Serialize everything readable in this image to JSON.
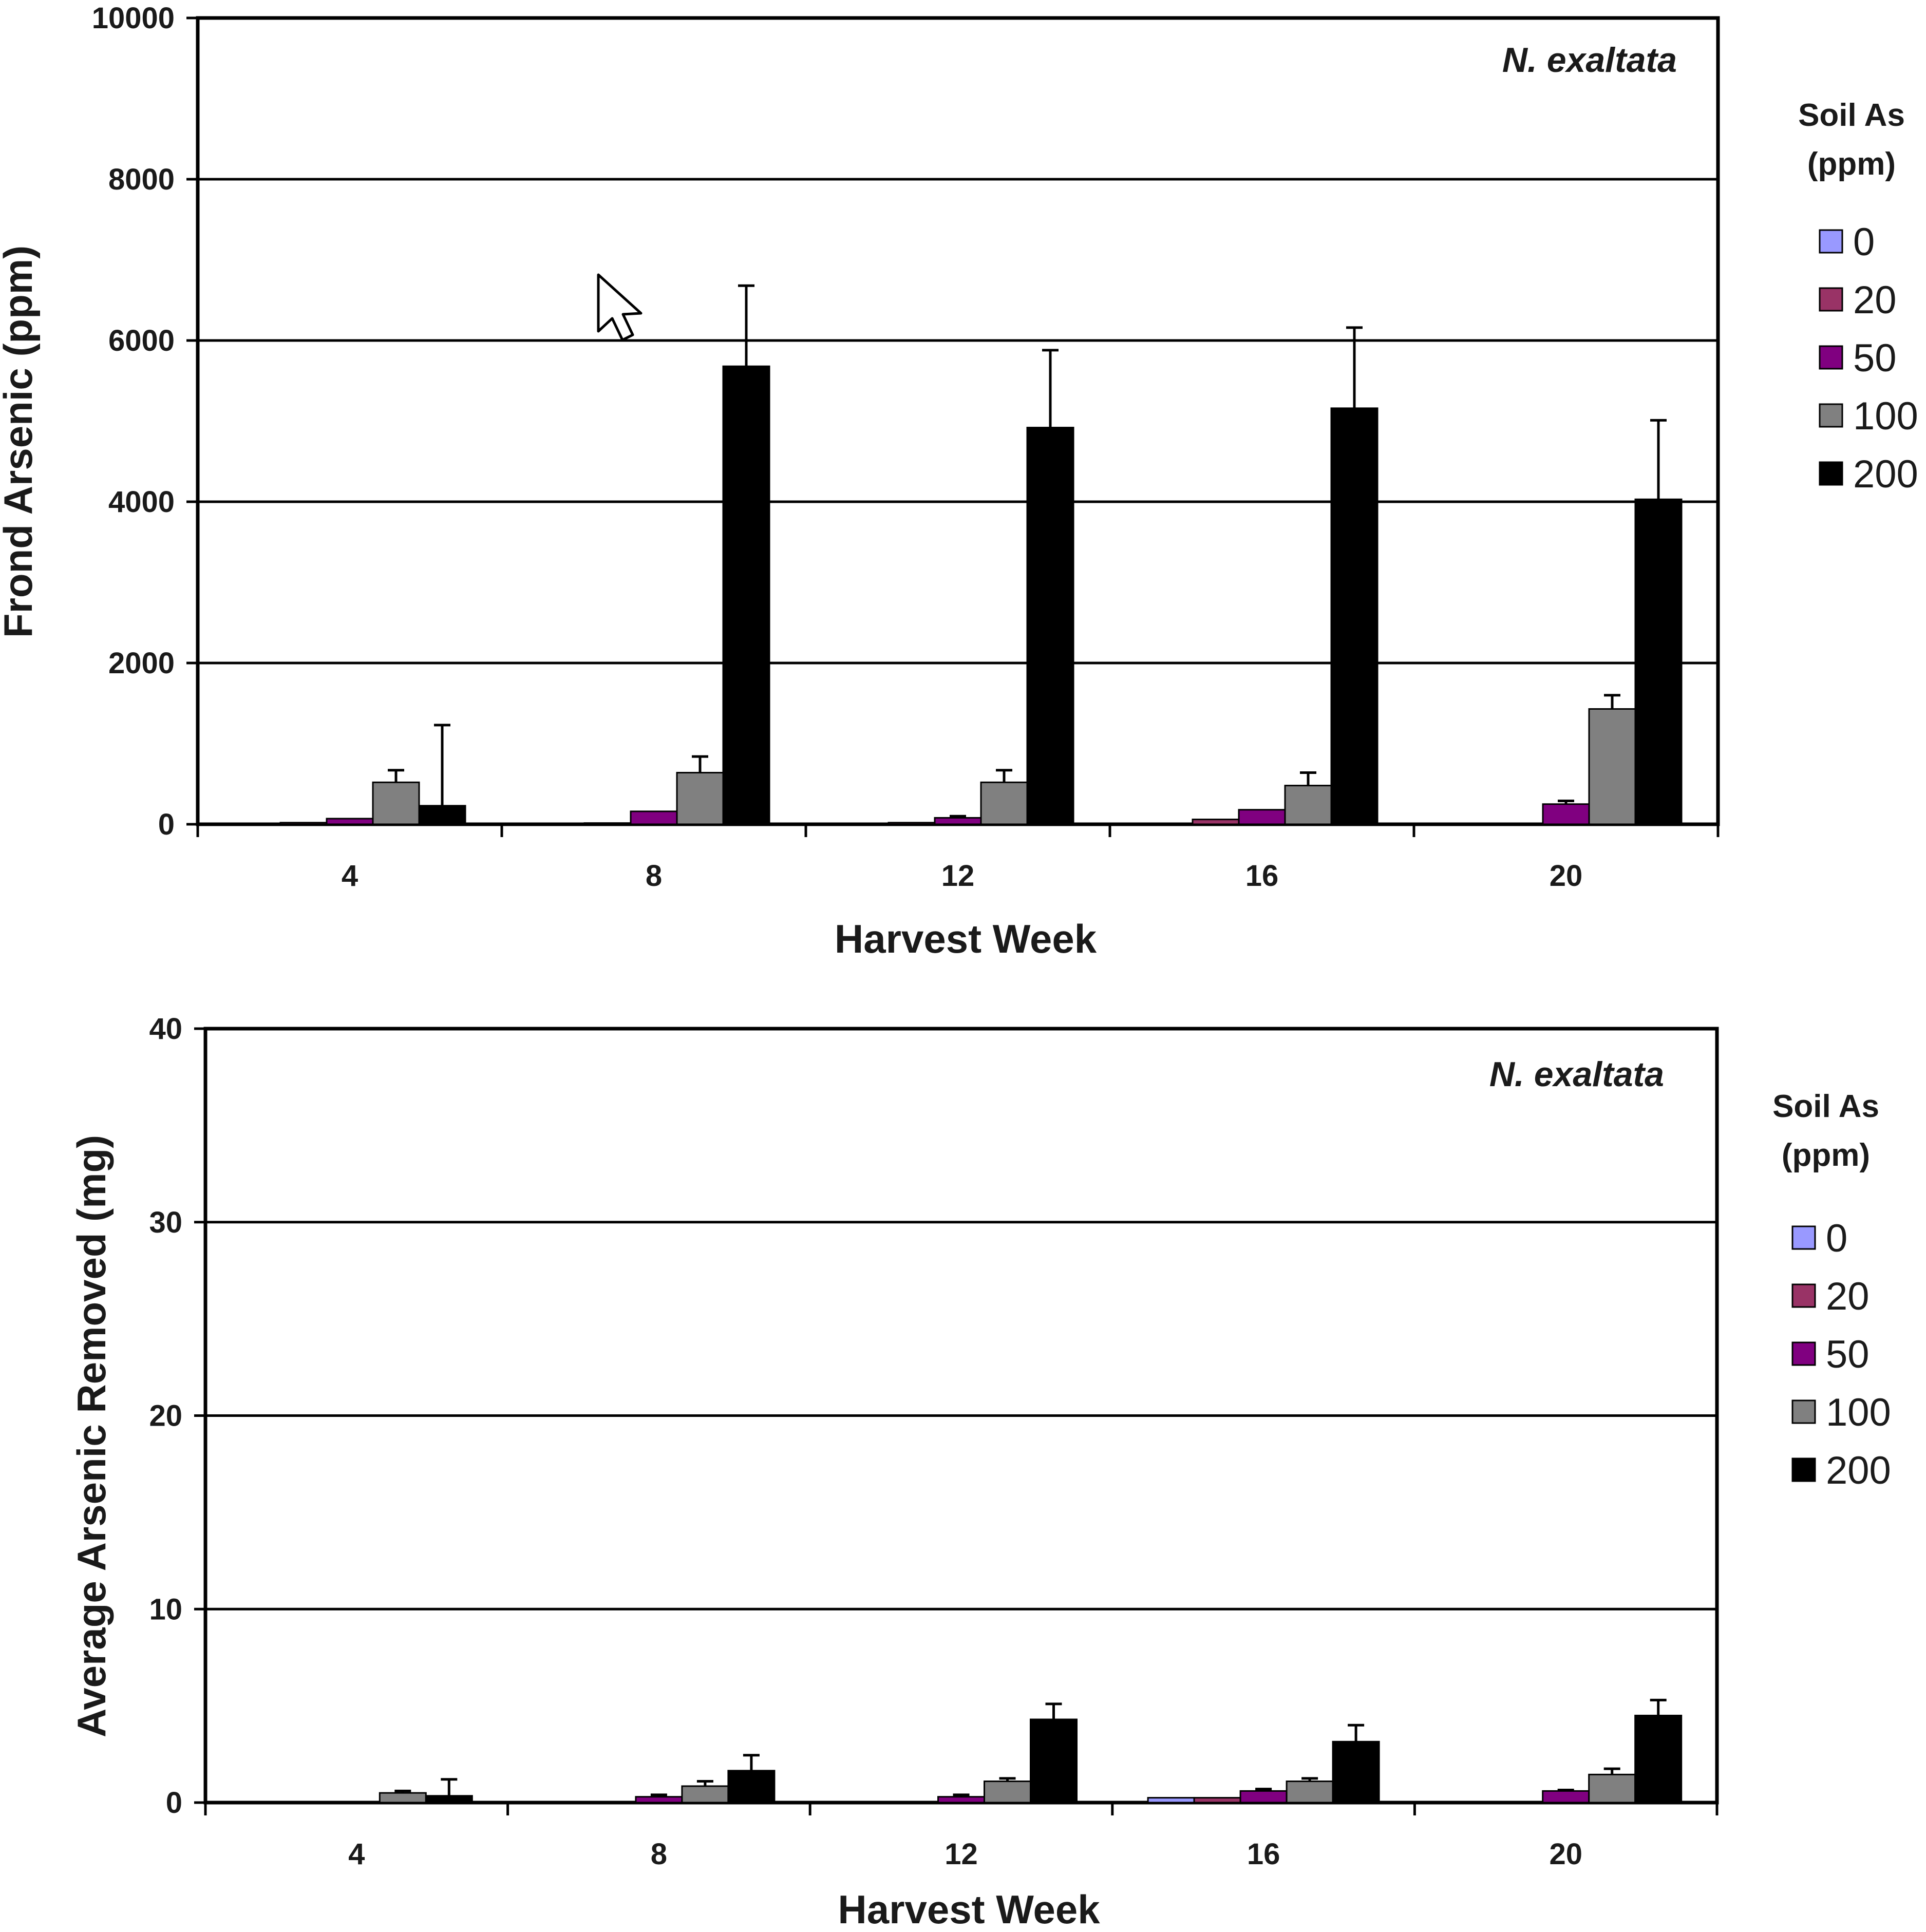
{
  "chart_data": [
    {
      "type": "bar",
      "title": "N. exaltata",
      "xlabel": "Harvest Week",
      "ylabel": "Frond Arsenic (ppm)",
      "ylim": [
        0,
        10000
      ],
      "yticks": [
        "0",
        "2000",
        "4000",
        "6000",
        "8000",
        "10000"
      ],
      "grid": true,
      "legend_title": [
        "Soil As",
        "(ppm)"
      ],
      "legend_placement": "right",
      "categories": [
        "4",
        "8",
        "12",
        "16",
        "20"
      ],
      "series": [
        {
          "name": "0",
          "color": "#9999ff",
          "values": [
            0,
            0,
            0,
            0,
            0
          ],
          "errors": [
            0,
            0,
            0,
            0,
            0
          ]
        },
        {
          "name": "20",
          "color": "#993366",
          "values": [
            20,
            15,
            20,
            60,
            10
          ],
          "errors": [
            0,
            0,
            0,
            0,
            0
          ]
        },
        {
          "name": "50",
          "color": "#800080",
          "values": [
            70,
            160,
            80,
            180,
            250
          ],
          "errors": [
            0,
            0,
            20,
            0,
            40
          ]
        },
        {
          "name": "100",
          "color": "#808080",
          "values": [
            520,
            640,
            520,
            480,
            1430
          ],
          "errors": [
            150,
            200,
            150,
            160,
            170
          ]
        },
        {
          "name": "200",
          "color": "#000000",
          "values": [
            230,
            5680,
            4920,
            5160,
            4030
          ],
          "errors": [
            1000,
            1000,
            960,
            1000,
            980
          ]
        }
      ]
    },
    {
      "type": "bar",
      "title": "N. exaltata",
      "xlabel": "Harvest Week",
      "ylabel": "Average Arsenic Removed (mg)",
      "ylim": [
        0,
        40
      ],
      "yticks": [
        "0",
        "10",
        "20",
        "30",
        "40"
      ],
      "grid": true,
      "legend_title": [
        "Soil As",
        "(ppm)"
      ],
      "legend_placement": "right",
      "categories": [
        "4",
        "8",
        "12",
        "16",
        "20"
      ],
      "series": [
        {
          "name": "0",
          "color": "#9999ff",
          "values": [
            0,
            0,
            0,
            0.25,
            0
          ],
          "errors": [
            0,
            0,
            0,
            0,
            0
          ]
        },
        {
          "name": "20",
          "color": "#993366",
          "values": [
            0,
            0,
            0,
            0.25,
            0
          ],
          "errors": [
            0,
            0,
            0,
            0,
            0
          ]
        },
        {
          "name": "50",
          "color": "#800080",
          "values": [
            0.05,
            0.3,
            0.3,
            0.6,
            0.6
          ],
          "errors": [
            0,
            0.1,
            0.1,
            0.1,
            0.05
          ]
        },
        {
          "name": "100",
          "color": "#808080",
          "values": [
            0.5,
            0.85,
            1.1,
            1.1,
            1.45
          ],
          "errors": [
            0.1,
            0.25,
            0.15,
            0.15,
            0.3
          ]
        },
        {
          "name": "200",
          "color": "#000000",
          "values": [
            0.35,
            1.65,
            4.3,
            3.15,
            4.5
          ],
          "errors": [
            0.85,
            0.8,
            0.8,
            0.85,
            0.8
          ]
        }
      ]
    }
  ]
}
